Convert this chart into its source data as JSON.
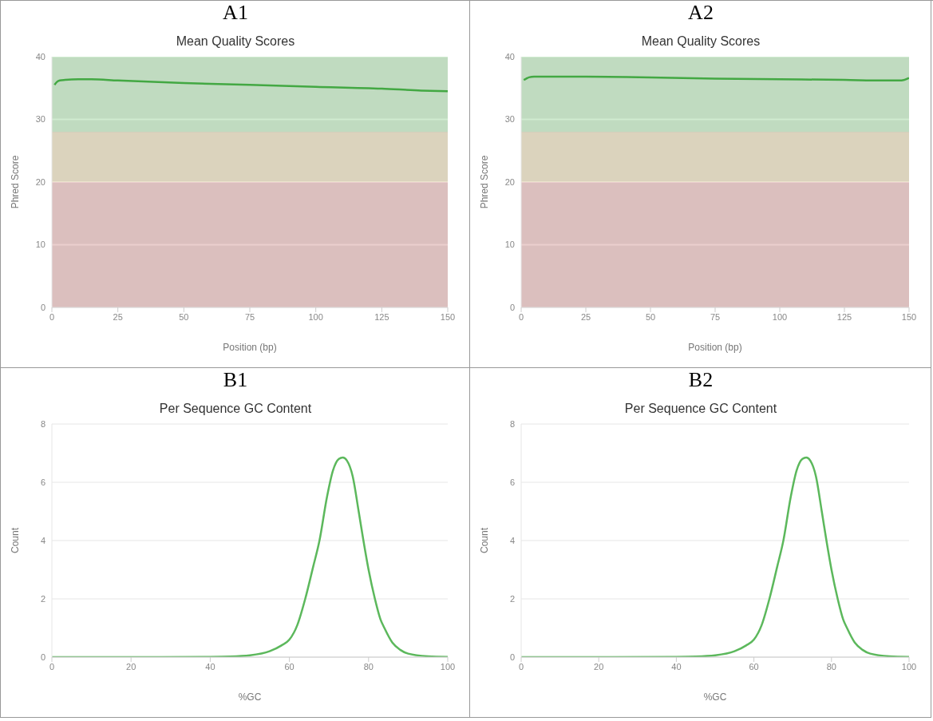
{
  "chart_data": [
    {
      "type": "line",
      "annotations": [
        "A1"
      ],
      "title": "Mean Quality Scores",
      "xlabel": "Position (bp)",
      "ylabel": "Phred Score",
      "x": [
        1,
        2,
        3,
        5,
        10,
        15,
        25,
        50,
        75,
        100,
        125,
        140,
        150
      ],
      "series": [
        {
          "color": "#43a843",
          "values": [
            35.5,
            36.0,
            36.2,
            36.3,
            36.4,
            36.4,
            36.2,
            35.8,
            35.5,
            35.2,
            34.9,
            34.6,
            34.5
          ]
        }
      ],
      "xlim": [
        0,
        150
      ],
      "xticks": [
        0,
        25,
        50,
        75,
        100,
        125,
        150
      ],
      "ylim": [
        0,
        40
      ],
      "yticks": [
        0,
        10,
        20,
        30,
        40
      ],
      "grid": "y",
      "bands": [
        {
          "axis": "y",
          "from": 28,
          "to": 40,
          "color": "#c4e6c4"
        },
        {
          "axis": "y",
          "from": 20,
          "to": 28,
          "color": "#e6dcc0"
        },
        {
          "axis": "y",
          "from": 0,
          "to": 20,
          "color": "#e6c3c2"
        }
      ]
    },
    {
      "type": "line",
      "annotations": [
        "A2"
      ],
      "title": "Mean Quality Scores",
      "xlabel": "Position (bp)",
      "ylabel": "Phred Score",
      "x": [
        1,
        2,
        3,
        5,
        10,
        25,
        50,
        75,
        100,
        125,
        140,
        147,
        150
      ],
      "series": [
        {
          "color": "#43a843",
          "values": [
            36.3,
            36.5,
            36.7,
            36.8,
            36.8,
            36.8,
            36.7,
            36.5,
            36.4,
            36.3,
            36.2,
            36.2,
            36.6
          ]
        }
      ],
      "xlim": [
        0,
        150
      ],
      "xticks": [
        0,
        25,
        50,
        75,
        100,
        125,
        150
      ],
      "ylim": [
        0,
        40
      ],
      "yticks": [
        0,
        10,
        20,
        30,
        40
      ],
      "grid": "y",
      "bands": [
        {
          "axis": "y",
          "from": 28,
          "to": 40,
          "color": "#c4e6c4"
        },
        {
          "axis": "y",
          "from": 20,
          "to": 28,
          "color": "#e6dcc0"
        },
        {
          "axis": "y",
          "from": 0,
          "to": 20,
          "color": "#e6c3c2"
        }
      ]
    },
    {
      "type": "line",
      "annotations": [
        "B1"
      ],
      "title": "Per Sequence GC Content",
      "xlabel": "%GC",
      "ylabel": "Count",
      "x": [
        0,
        20,
        40,
        45,
        50,
        55,
        58,
        60,
        62,
        64,
        66,
        67.6,
        69.5,
        71,
        72.5,
        73.5,
        74.5,
        76,
        77.5,
        78.7,
        80,
        81.6,
        83,
        84,
        86,
        88,
        90,
        95,
        100
      ],
      "series": [
        {
          "color": "#5cb85c",
          "values": [
            0,
            0,
            0.01,
            0.02,
            0.06,
            0.2,
            0.4,
            0.6,
            1.1,
            2.0,
            3.1,
            4.0,
            5.5,
            6.4,
            6.8,
            6.85,
            6.75,
            6.2,
            5.0,
            4.0,
            3.0,
            2.0,
            1.3,
            1.0,
            0.5,
            0.25,
            0.12,
            0.03,
            0.01
          ]
        }
      ],
      "xlim": [
        0,
        100
      ],
      "xticks": [
        0,
        20,
        40,
        60,
        80,
        100
      ],
      "ylim": [
        0,
        8
      ],
      "yticks": [
        0,
        2,
        4,
        6,
        8
      ],
      "grid": "y"
    },
    {
      "type": "line",
      "annotations": [
        "B2"
      ],
      "title": "Per Sequence GC Content",
      "xlabel": "%GC",
      "ylabel": "Count",
      "x": [
        0,
        20,
        40,
        45,
        50,
        55,
        58,
        60,
        62,
        64,
        66,
        67.6,
        69.5,
        71,
        72.5,
        73.5,
        74.5,
        76,
        77.5,
        78.7,
        80,
        81.6,
        83,
        84,
        86,
        88,
        90,
        95,
        100
      ],
      "series": [
        {
          "color": "#5cb85c",
          "values": [
            0,
            0,
            0.01,
            0.02,
            0.06,
            0.2,
            0.4,
            0.6,
            1.1,
            2.0,
            3.1,
            4.0,
            5.5,
            6.4,
            6.8,
            6.85,
            6.75,
            6.2,
            5.0,
            4.0,
            3.0,
            2.0,
            1.3,
            1.0,
            0.5,
            0.25,
            0.12,
            0.03,
            0.01
          ]
        }
      ],
      "xlim": [
        0,
        100
      ],
      "xticks": [
        0,
        20,
        40,
        60,
        80,
        100
      ],
      "ylim": [
        0,
        8
      ],
      "yticks": [
        0,
        2,
        4,
        6,
        8
      ],
      "grid": "y"
    }
  ]
}
